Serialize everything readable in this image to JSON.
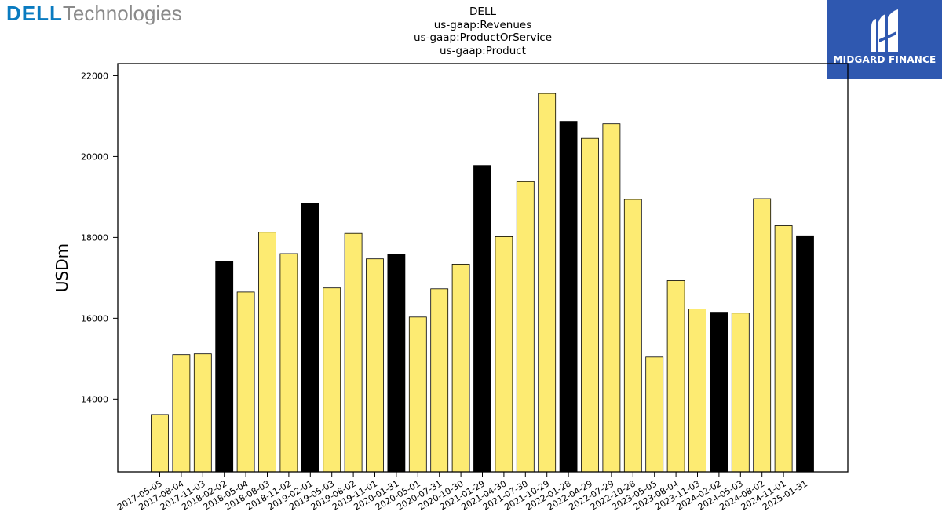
{
  "header": {
    "left_logo": {
      "brand": "DELL",
      "suffix": "Technologies",
      "color": "#0a7bc0"
    },
    "right_logo": {
      "text": "MIDGARD FINANCE",
      "background": "#2f58b0"
    },
    "title_lines": [
      "DELL",
      "us-gaap:Revenues",
      "us-gaap:ProductOrService",
      "us-gaap:Product"
    ]
  },
  "chart_data": {
    "type": "bar",
    "ylabel": "USDm",
    "xlabel": "",
    "ylim": [
      12200,
      22300
    ],
    "yticks": [
      14000,
      16000,
      18000,
      20000,
      22000
    ],
    "grid": false,
    "colors": {
      "default": "#fdeb72",
      "highlight": "#000000",
      "edge": "#000000"
    },
    "categories": [
      "2017-05-05",
      "2017-08-04",
      "2017-11-03",
      "2018-02-02",
      "2018-05-04",
      "2018-08-03",
      "2018-11-02",
      "2019-02-01",
      "2019-05-03",
      "2019-08-02",
      "2019-11-01",
      "2020-01-31",
      "2020-05-01",
      "2020-07-31",
      "2020-10-30",
      "2021-01-29",
      "2021-04-30",
      "2021-07-30",
      "2021-10-29",
      "2022-01-28",
      "2022-04-29",
      "2022-07-29",
      "2022-10-28",
      "2023-05-05",
      "2023-08-04",
      "2023-11-03",
      "2024-02-02",
      "2024-05-03",
      "2024-08-02",
      "2024-11-01",
      "2025-01-31"
    ],
    "values": [
      13620,
      15100,
      15120,
      17400,
      16650,
      18130,
      17600,
      18840,
      16750,
      18100,
      17470,
      17580,
      16030,
      16730,
      17340,
      19780,
      18020,
      19380,
      21560,
      20870,
      20450,
      20810,
      18940,
      15040,
      16930,
      16230,
      16150,
      16130,
      18960,
      18290,
      18040
    ],
    "highlighted": [
      false,
      false,
      false,
      true,
      false,
      false,
      false,
      true,
      false,
      false,
      false,
      true,
      false,
      false,
      false,
      true,
      false,
      false,
      false,
      true,
      false,
      false,
      false,
      false,
      false,
      false,
      true,
      false,
      false,
      false,
      true
    ]
  }
}
